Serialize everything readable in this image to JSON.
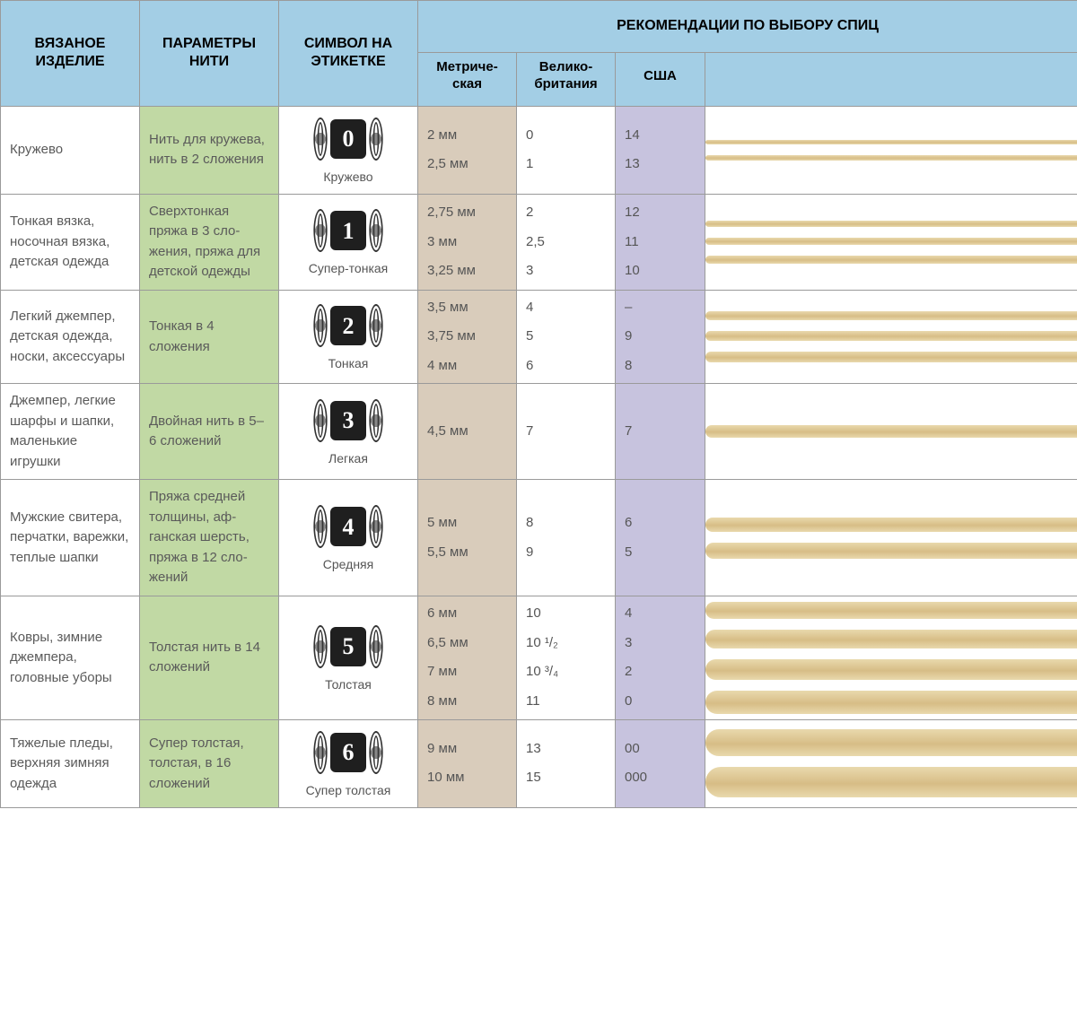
{
  "colors": {
    "header_bg": "#a3cee5",
    "thread_bg": "#c1d9a4",
    "metric_bg": "#d9ccbb",
    "usa_bg": "#c7c3de",
    "border": "#9a9a9a",
    "needle_light": "#e9d9ad",
    "needle_dark": "#d7bd86"
  },
  "headers": {
    "product": "ВЯЗАНОЕ ИЗДЕЛИЕ",
    "thread": "ПАРАМЕТРЫ НИТИ",
    "symbol": "СИМВОЛ НА ЭТИКЕТКЕ",
    "rec": "РЕКОМЕНДАЦИИ ПО ВЫБОРУ СПИЦ",
    "metric": "Метриче­ская",
    "uk": "Велико­британия",
    "usa": "США"
  },
  "rows": [
    {
      "product": "Кружево",
      "thread": "Нить для круже­ва, нить в 2 сло­жения",
      "symbol_num": "0",
      "symbol_label": "Кружево",
      "metric": [
        "2 мм",
        "2,5 мм"
      ],
      "uk": [
        "0",
        "1"
      ],
      "usa": [
        "14",
        "13"
      ],
      "needles": [
        5,
        6
      ]
    },
    {
      "product": "Тонкая вязка, носочная вязка, детская одежда",
      "thread": "Сверхтонкая пряжа в 3 сло­жения, пряжа для детской одежды",
      "symbol_num": "1",
      "symbol_label": "Супер-тонкая",
      "metric": [
        "2,75 мм",
        "3 мм",
        "3,25 мм"
      ],
      "uk": [
        "2",
        "2,5",
        "3"
      ],
      "usa": [
        "12",
        "11",
        "10"
      ],
      "needles": [
        7,
        8,
        9
      ]
    },
    {
      "product": "Легкий джем­пер, детская одежда, носки, аксессуары",
      "thread": "Тонкая в 4 сложения",
      "symbol_num": "2",
      "symbol_label": "Тонкая",
      "metric": [
        "3,5 мм",
        "3,75 мм",
        "4 мм"
      ],
      "uk": [
        "4",
        "5",
        "6"
      ],
      "usa": [
        "–",
        "9",
        "8"
      ],
      "needles": [
        10,
        11,
        12
      ]
    },
    {
      "product": "Джемпер, легкие шарфы и шап­ки, маленькие игрушки",
      "thread": "Двойная нить в 5–6 сложений",
      "symbol_num": "3",
      "symbol_label": "Легкая",
      "metric": [
        "4,5 мм"
      ],
      "uk": [
        "7"
      ],
      "usa": [
        "7"
      ],
      "needles": [
        14
      ]
    },
    {
      "product": "Мужские сви­тера, перчатки, варежки, теплые шапки",
      "thread": "Пряжа средней толщины, аф­ганская шерсть, пряжа в 12 сло­жений",
      "symbol_num": "4",
      "symbol_label": "Средняя",
      "metric": [
        "5 мм",
        "5,5 мм"
      ],
      "uk": [
        "8",
        "9"
      ],
      "usa": [
        "6",
        "5"
      ],
      "needles": [
        16,
        18
      ]
    },
    {
      "product": "Ковры, зимние джемпера, головные уборы",
      "thread": "Толстая нить в 14 сложений",
      "symbol_num": "5",
      "symbol_label": "Толстая",
      "metric": [
        "6 мм",
        "6,5 мм",
        "7 мм",
        "8 мм"
      ],
      "uk": [
        "10",
        "10 ¹/₂",
        "10 ³/₄",
        "11"
      ],
      "usa": [
        "4",
        "3",
        "2",
        "0"
      ],
      "needles": [
        19,
        21,
        23,
        26
      ]
    },
    {
      "product": "Тяжелые пледы, верхняя зимняя одежда",
      "thread": "Супер толстая, толстая, в 16 сложений",
      "symbol_num": "6",
      "symbol_label": "Супер толстая",
      "metric": [
        "9 мм",
        "10 мм"
      ],
      "uk": [
        "13",
        "15"
      ],
      "usa": [
        "00",
        "000"
      ],
      "needles": [
        30,
        34
      ]
    }
  ]
}
